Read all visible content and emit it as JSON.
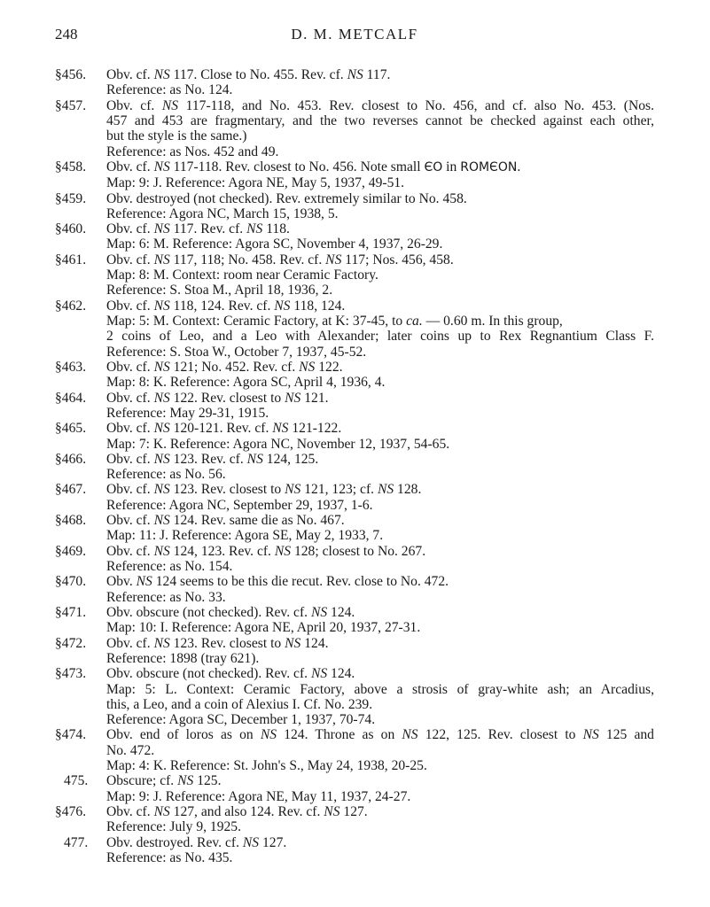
{
  "header": {
    "page_number": "248",
    "running_head": "D. M. METCALF"
  },
  "entries": [
    {
      "num": "§456.",
      "lines": [
        "Obv. cf. NS 117. Close to No. 455. Rev. cf. NS 117.",
        "Reference: as No. 124."
      ]
    },
    {
      "num": "§457.",
      "lines": [
        "Obv. cf. NS 117-118, and No. 453. Rev. closest to No. 456, and cf. also No. 453. (Nos.",
        "457 and 453 are fragmentary, and the two reverses cannot be checked against each other,",
        "but the style is the same.)",
        "Reference: as Nos. 452 and 49."
      ]
    },
    {
      "num": "§458.",
      "lines": [
        "Obv. cf. NS 117-118. Rev. closest to No. 456. Note small ЄO in ROMЄON.",
        "Map: 9: J. Reference: Agora NE, May 5, 1937, 49-51."
      ]
    },
    {
      "num": "§459.",
      "lines": [
        "Obv. destroyed (not checked). Rev. extremely similar to No. 458.",
        "Reference: Agora NC, March 15, 1938, 5."
      ]
    },
    {
      "num": "§460.",
      "lines": [
        "Obv. cf. NS 117. Rev. cf. NS 118.",
        "Map: 6: M. Reference: Agora SC, November 4, 1937, 26-29."
      ]
    },
    {
      "num": "§461.",
      "lines": [
        "Obv. cf. NS 117, 118; No. 458. Rev. cf. NS 117; Nos. 456, 458.",
        "Map: 8: M. Context: room near Ceramic Factory.",
        "Reference: S. Stoa M., April 18, 1936, 2."
      ]
    },
    {
      "num": "§462.",
      "lines": [
        "Obv. cf. NS 118, 124. Rev. cf. NS 118, 124.",
        "Map: 5: M. Context: Ceramic Factory, at K: 37-45, to ca. — 0.60 m. In this group,",
        "2 coins of Leo, and a Leo with Alexander; later coins up to Rex Regnantium Class F.",
        "Reference: S. Stoa W., October 7, 1937, 45-52."
      ]
    },
    {
      "num": "§463.",
      "lines": [
        "Obv. cf. NS 121; No. 452. Rev. cf. NS 122.",
        "Map: 8: K. Reference: Agora SC, April 4, 1936, 4."
      ]
    },
    {
      "num": "§464.",
      "lines": [
        "Obv. cf. NS 122. Rev. closest to NS 121.",
        "Reference: May 29-31, 1915."
      ]
    },
    {
      "num": "§465.",
      "lines": [
        "Obv. cf. NS 120-121. Rev. cf. NS 121-122.",
        "Map: 7: K. Reference: Agora NC, November 12, 1937, 54-65."
      ]
    },
    {
      "num": "§466.",
      "lines": [
        "Obv. cf. NS 123. Rev. cf. NS 124, 125.",
        "Reference: as No. 56."
      ]
    },
    {
      "num": "§467.",
      "lines": [
        "Obv. cf. NS 123. Rev. closest to NS 121, 123; cf. NS 128.",
        "Reference: Agora NC, September 29, 1937, 1-6."
      ]
    },
    {
      "num": "§468.",
      "lines": [
        "Obv. cf. NS 124. Rev. same die as No. 467.",
        "Map: 11: J. Reference: Agora SE, May 2, 1933, 7."
      ]
    },
    {
      "num": "§469.",
      "lines": [
        "Obv. cf. NS 124, 123. Rev. cf. NS 128; closest to No. 267.",
        "Reference: as No. 154."
      ]
    },
    {
      "num": "§470.",
      "lines": [
        "Obv. NS 124 seems to be this die recut. Rev. close to No. 472.",
        "Reference: as No. 33."
      ]
    },
    {
      "num": "§471.",
      "lines": [
        "Obv. obscure (not checked). Rev. cf. NS 124.",
        "Map: 10: I. Reference: Agora NE, April 20, 1937, 27-31."
      ]
    },
    {
      "num": "§472.",
      "lines": [
        "Obv. cf. NS 123. Rev. closest to NS 124.",
        "Reference: 1898 (tray 621)."
      ]
    },
    {
      "num": "§473.",
      "lines": [
        "Obv. obscure (not checked). Rev. cf. NS 124.",
        "Map: 5: L. Context: Ceramic Factory, above a strosis of gray-white ash; an Arcadius,",
        "this, a Leo, and a coin of Alexius I. Cf. No. 239.",
        "Reference: Agora SC, December 1, 1937, 70-74."
      ]
    },
    {
      "num": "§474.",
      "lines": [
        "Obv. end of loros as on NS 124. Throne as on NS 122, 125. Rev. closest to NS 125 and",
        "No. 472.",
        "Map: 4: K. Reference: St. John's S., May 24, 1938, 20-25."
      ]
    },
    {
      "num": "475.",
      "lines": [
        "Obscure; cf. NS 125.",
        "Map: 9: J. Reference: Agora NE, May 11, 1937, 24-27."
      ]
    },
    {
      "num": "§476.",
      "lines": [
        "Obv. cf. NS 127, and also 124. Rev. cf. NS 127.",
        "Reference: July 9, 1925."
      ]
    },
    {
      "num": "477.",
      "lines": [
        "Obv. destroyed. Rev. cf. NS 127.",
        "Reference: as No. 435."
      ]
    }
  ]
}
